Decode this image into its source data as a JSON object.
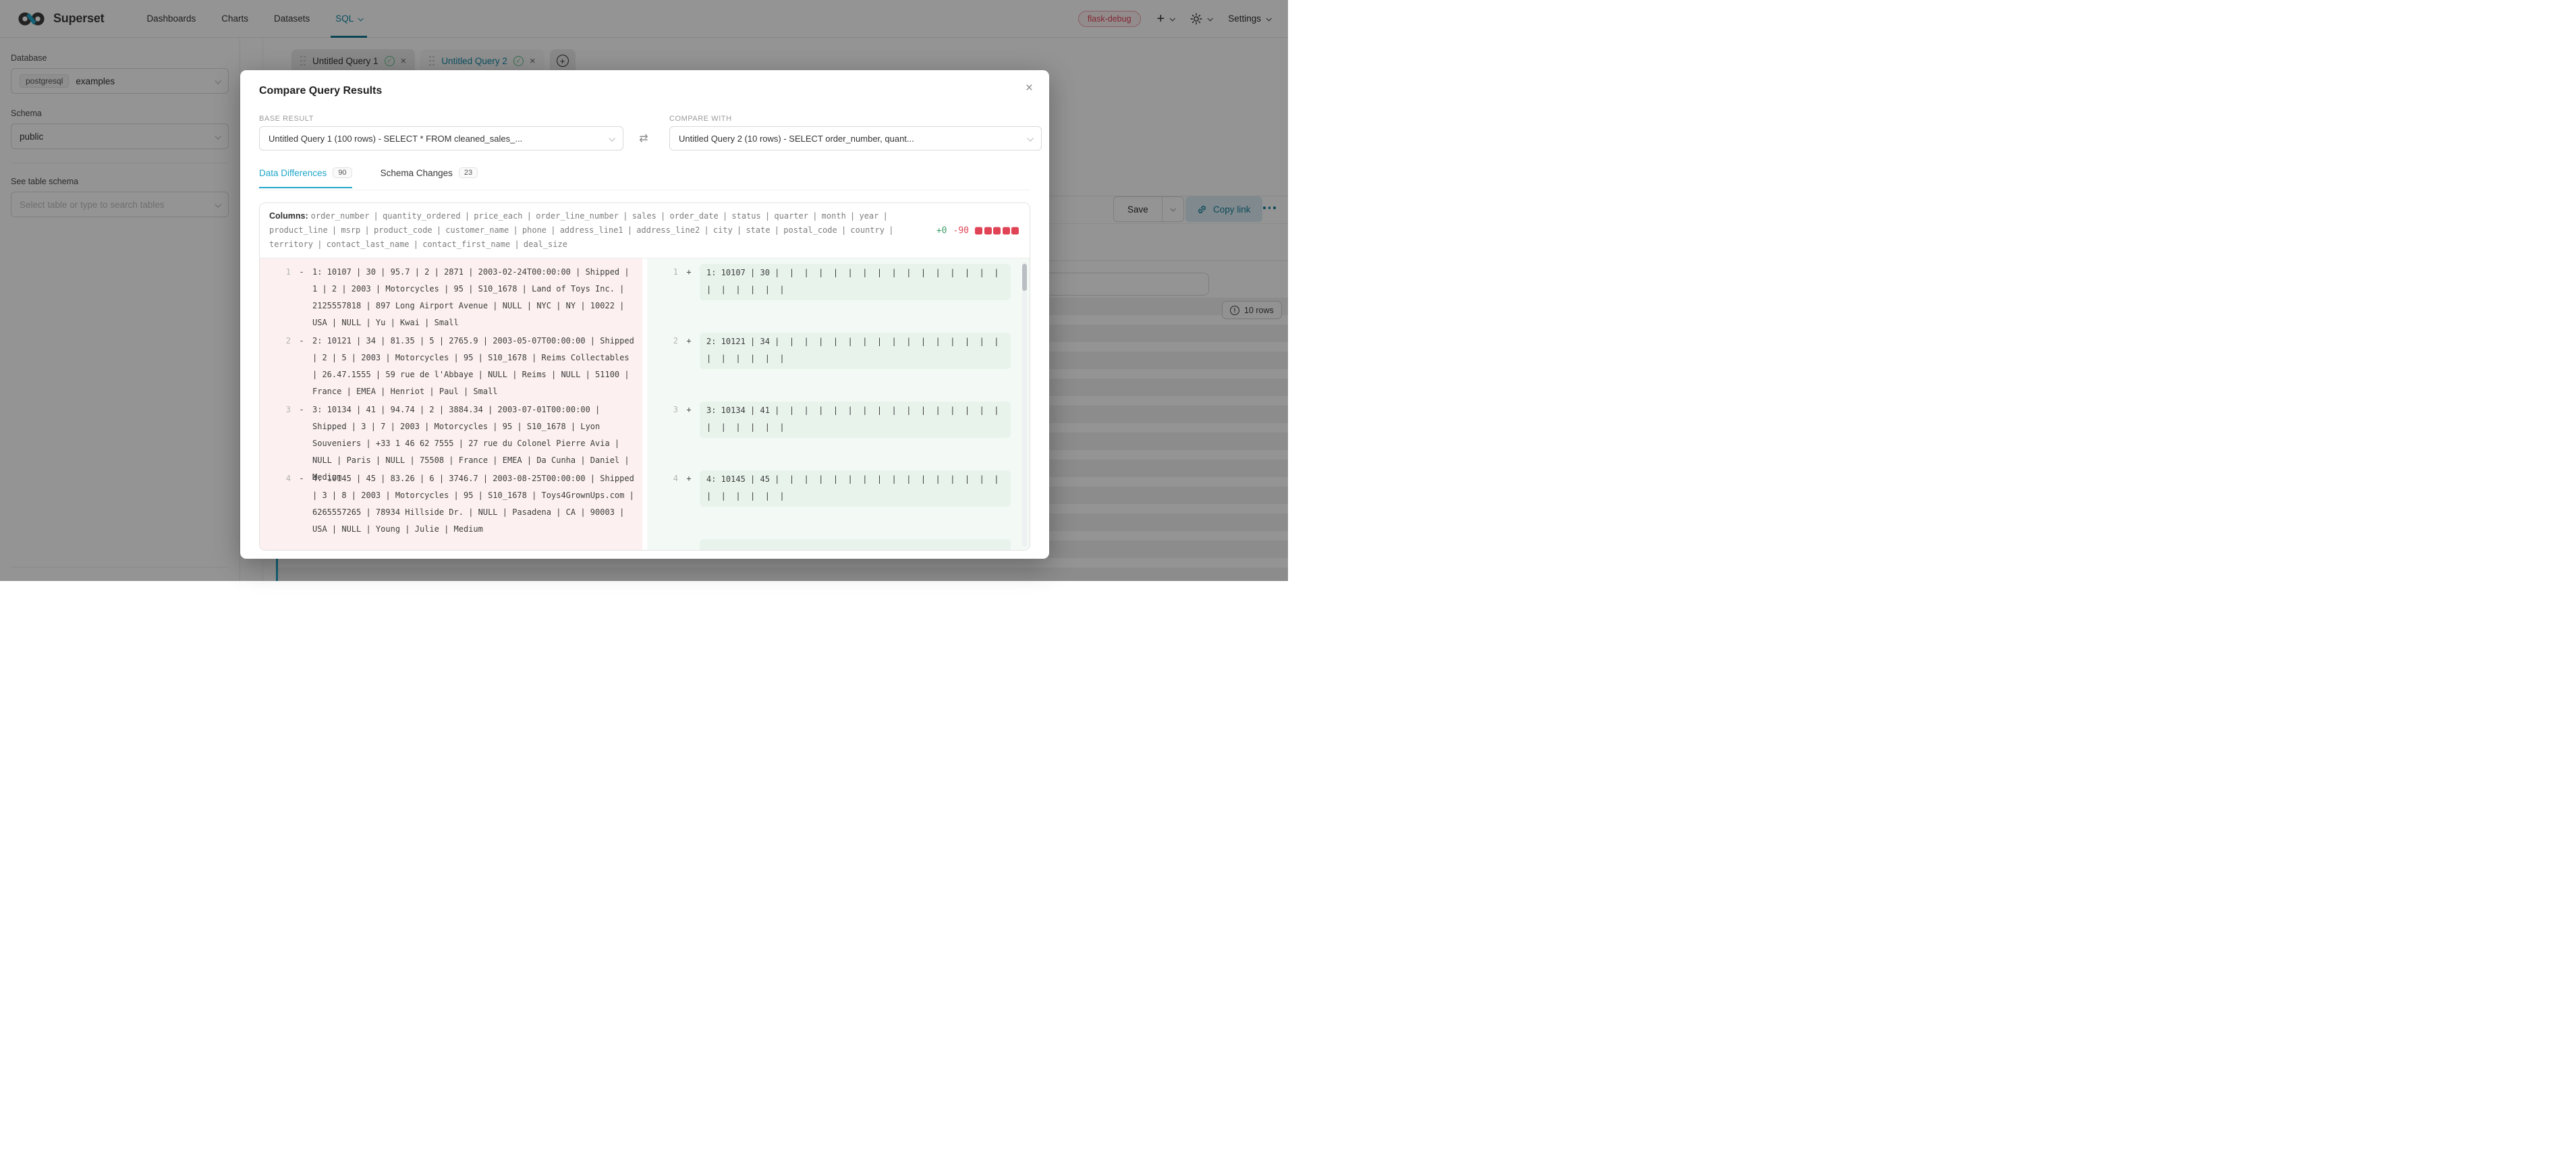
{
  "colors": {
    "accent": "#20a7c9",
    "red": "#e04355",
    "green": "#3f9e6a",
    "diff_left_bg": "#fcf0f0",
    "diff_right_bg": "#f3faf5",
    "diff_right_highlight": "#e8f3ec"
  },
  "nav": {
    "brand": "Superset",
    "items": [
      {
        "label": "Dashboards"
      },
      {
        "label": "Charts"
      },
      {
        "label": "Datasets"
      },
      {
        "label": "SQL"
      }
    ],
    "env_badge": "flask-debug",
    "settings_label": "Settings"
  },
  "sidebar": {
    "database_label": "Database",
    "database_tag": "postgresql",
    "database_value": "examples",
    "schema_label": "Schema",
    "schema_value": "public",
    "table_label": "See table schema",
    "table_placeholder": "Select table or type to search tables"
  },
  "editor_tabs": {
    "tab1": "Untitled Query 1",
    "tab2": "Untitled Query 2"
  },
  "results_panel": {
    "save_label": "Save",
    "copy_link_label": "Copy link",
    "more_icon": "ellipsis",
    "rows_badge": "10 rows"
  },
  "modal": {
    "title": "Compare Query Results",
    "base": {
      "label": "BASE RESULT",
      "value": "Untitled Query 1 (100 rows) - SELECT * FROM cleaned_sales_..."
    },
    "compare": {
      "label": "COMPARE WITH",
      "value": "Untitled Query 2 (10 rows) - SELECT order_number, quant..."
    },
    "tabs": [
      {
        "label": "Data Differences",
        "count": "90"
      },
      {
        "label": "Schema Changes",
        "count": "23"
      }
    ],
    "diff": {
      "columns_label": "Columns:",
      "columns": "order_number | quantity_ordered | price_each | order_line_number | sales | order_date | status | quarter | month | year | product_line | msrp | product_code | customer_name | phone | address_line1 | address_line2 | city | state | postal_code | country | territory | contact_last_name | contact_first_name | deal_size",
      "added_count": "+0",
      "removed_count": "-90",
      "removed_blocks": 5,
      "left_rows": [
        {
          "num": "1",
          "sign": "-",
          "text": "1: 10107 | 30 | 95.7 | 2 | 2871 | 2003-02-24T00:00:00 | Shipped | 1 | 2 | 2003 | Motorcycles | 95 | S10_1678 | Land of Toys Inc. | 2125557818 | 897 Long Airport Avenue | NULL | NYC | NY | 10022 | USA | NULL | Yu | Kwai | Small"
        },
        {
          "num": "2",
          "sign": "-",
          "text": "2: 10121 | 34 | 81.35 | 5 | 2765.9 | 2003-05-07T00:00:00 | Shipped | 2 | 5 | 2003 | Motorcycles | 95 | S10_1678 | Reims Collectables | 26.47.1555 | 59 rue de l'Abbaye | NULL | Reims | NULL | 51100 | France | EMEA | Henriot | Paul | Small"
        },
        {
          "num": "3",
          "sign": "-",
          "text": "3: 10134 | 41 | 94.74 | 2 | 3884.34 | 2003-07-01T00:00:00 | Shipped | 3 | 7 | 2003 | Motorcycles | 95 | S10_1678 | Lyon Souveniers | +33 1 46 62 7555 | 27 rue du Colonel Pierre Avia | NULL | Paris | NULL | 75508 | France | EMEA | Da Cunha | Daniel | Medium"
        },
        {
          "num": "4",
          "sign": "-",
          "text": "4: 10145 | 45 | 83.26 | 6 | 3746.7 | 2003-08-25T00:00:00 | Shipped | 3 | 8 | 2003 | Motorcycles | 95 | S10_1678 | Toys4GrownUps.com | 6265557265 | 78934 Hillside Dr. | NULL | Pasadena | CA | 90003 | USA | NULL | Young | Julie | Medium"
        }
      ],
      "right_rows": [
        {
          "num": "1",
          "sign": "+",
          "text": "1: 10107 | 30 |  |  |  |  |  |  |  |  |  |  |  |  |  |  |  |  |  |  |  |  |  | "
        },
        {
          "num": "2",
          "sign": "+",
          "text": "2: 10121 | 34 |  |  |  |  |  |  |  |  |  |  |  |  |  |  |  |  |  |  |  |  |  | "
        },
        {
          "num": "3",
          "sign": "+",
          "text": "3: 10134 | 41 |  |  |  |  |  |  |  |  |  |  |  |  |  |  |  |  |  |  |  |  |  | "
        },
        {
          "num": "4",
          "sign": "+",
          "text": "4: 10145 | 45 |  |  |  |  |  |  |  |  |  |  |  |  |  |  |  |  |  |  |  |  |  | "
        },
        {
          "num": "",
          "sign": "",
          "text": ""
        }
      ]
    }
  }
}
